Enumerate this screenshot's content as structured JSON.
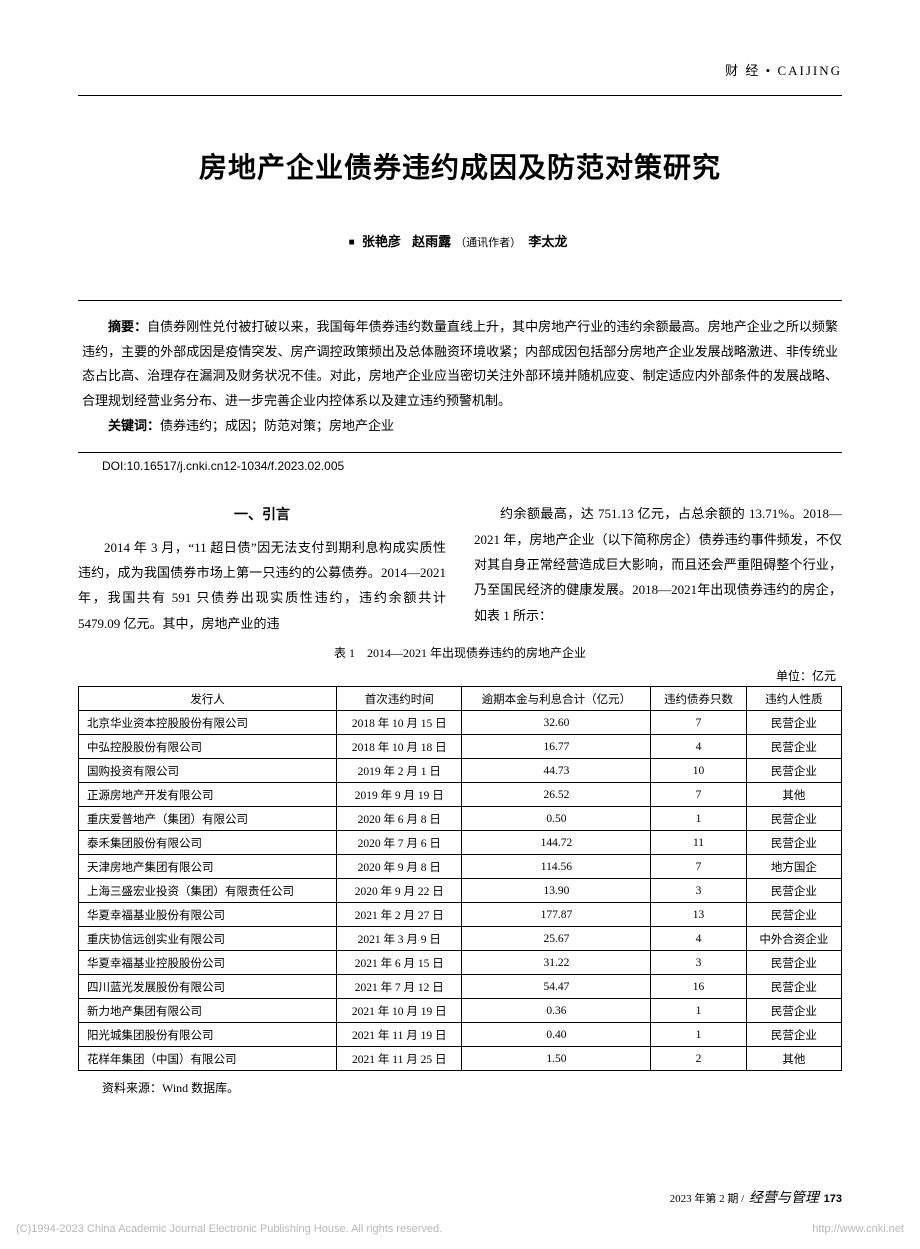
{
  "header": {
    "category_cn": "财 经",
    "bullet": "•",
    "category_pinyin": "CAIJING"
  },
  "title": "房地产企业债券违约成因及防范对策研究",
  "authors": {
    "marker": "■",
    "a1": "张艳彦",
    "a2": "赵雨露",
    "a2_note": "（通讯作者）",
    "a3": "李太龙"
  },
  "abstract": {
    "label": "摘要：",
    "text": "自债券刚性兑付被打破以来，我国每年债券违约数量直线上升，其中房地产行业的违约余额最高。房地产企业之所以频繁违约，主要的外部成因是疫情突发、房产调控政策频出及总体融资环境收紧；内部成因包括部分房地产企业发展战略激进、非传统业态占比高、治理存在漏洞及财务状况不佳。对此，房地产企业应当密切关注外部环境并随机应变、制定适应内外部条件的发展战略、合理规划经营业务分布、进一步完善企业内控体系以及建立违约预警机制。",
    "kw_label": "关键词：",
    "keywords": "债券违约；成因；防范对策；房地产企业"
  },
  "doi": "DOI:10.16517/j.cnki.cn12-1034/f.2023.02.005",
  "body": {
    "heading": "一、引言",
    "left": "2014 年 3 月，“11 超日债”因无法支付到期利息构成实质性违约，成为我国债券市场上第一只违约的公募债券。2014—2021 年，我国共有 591 只债券出现实质性违约，违约余额共计 5479.09 亿元。其中，房地产业的违",
    "right": "约余额最高，达 751.13 亿元，占总余额的 13.71%。2018—2021 年，房地产企业（以下简称房企）债券违约事件频发，不仅对其自身正常经营造成巨大影响，而且还会严重阻碍整个行业，乃至国民经济的健康发展。2018—2021年出现债券违约的房企，如表 1 所示："
  },
  "table": {
    "caption": "表 1　2014—2021 年出现债券违约的房地产企业",
    "unit": "单位：亿元",
    "columns": [
      "发行人",
      "首次违约时间",
      "逾期本金与利息合计（亿元）",
      "违约债券只数",
      "违约人性质"
    ],
    "rows": [
      [
        "北京华业资本控股股份有限公司",
        "2018 年 10 月 15 日",
        "32.60",
        "7",
        "民营企业"
      ],
      [
        "中弘控股股份有限公司",
        "2018 年 10 月 18 日",
        "16.77",
        "4",
        "民营企业"
      ],
      [
        "国购投资有限公司",
        "2019 年 2 月 1 日",
        "44.73",
        "10",
        "民营企业"
      ],
      [
        "正源房地产开发有限公司",
        "2019 年 9 月 19 日",
        "26.52",
        "7",
        "其他"
      ],
      [
        "重庆爱普地产（集团）有限公司",
        "2020 年 6 月 8 日",
        "0.50",
        "1",
        "民营企业"
      ],
      [
        "泰禾集团股份有限公司",
        "2020 年 7 月 6 日",
        "144.72",
        "11",
        "民营企业"
      ],
      [
        "天津房地产集团有限公司",
        "2020 年 9 月 8 日",
        "114.56",
        "7",
        "地方国企"
      ],
      [
        "上海三盛宏业投资（集团）有限责任公司",
        "2020 年 9 月 22 日",
        "13.90",
        "3",
        "民营企业"
      ],
      [
        "华夏幸福基业股份有限公司",
        "2021 年 2 月 27 日",
        "177.87",
        "13",
        "民营企业"
      ],
      [
        "重庆协信远创实业有限公司",
        "2021 年 3 月 9 日",
        "25.67",
        "4",
        "中外合资企业"
      ],
      [
        "华夏幸福基业控股股份公司",
        "2021 年 6 月 15 日",
        "31.22",
        "3",
        "民营企业"
      ],
      [
        "四川蓝光发展股份有限公司",
        "2021 年 7 月 12 日",
        "54.47",
        "16",
        "民营企业"
      ],
      [
        "新力地产集团有限公司",
        "2021 年 10 月 19 日",
        "0.36",
        "1",
        "民营企业"
      ],
      [
        "阳光城集团股份有限公司",
        "2021 年 11 月 19 日",
        "0.40",
        "1",
        "民营企业"
      ],
      [
        "花样年集团（中国）有限公司",
        "2021 年 11 月 25 日",
        "1.50",
        "2",
        "其他"
      ]
    ],
    "source": "资料来源：Wind 数据库。"
  },
  "footer": {
    "issue": "2023 年第 2 期 /",
    "journal": "经营与管理",
    "page": "173"
  },
  "watermark": {
    "left": "(C)1994-2023 China Academic Journal Electronic Publishing House. All rights reserved.",
    "right": "http://www.cnki.net"
  }
}
